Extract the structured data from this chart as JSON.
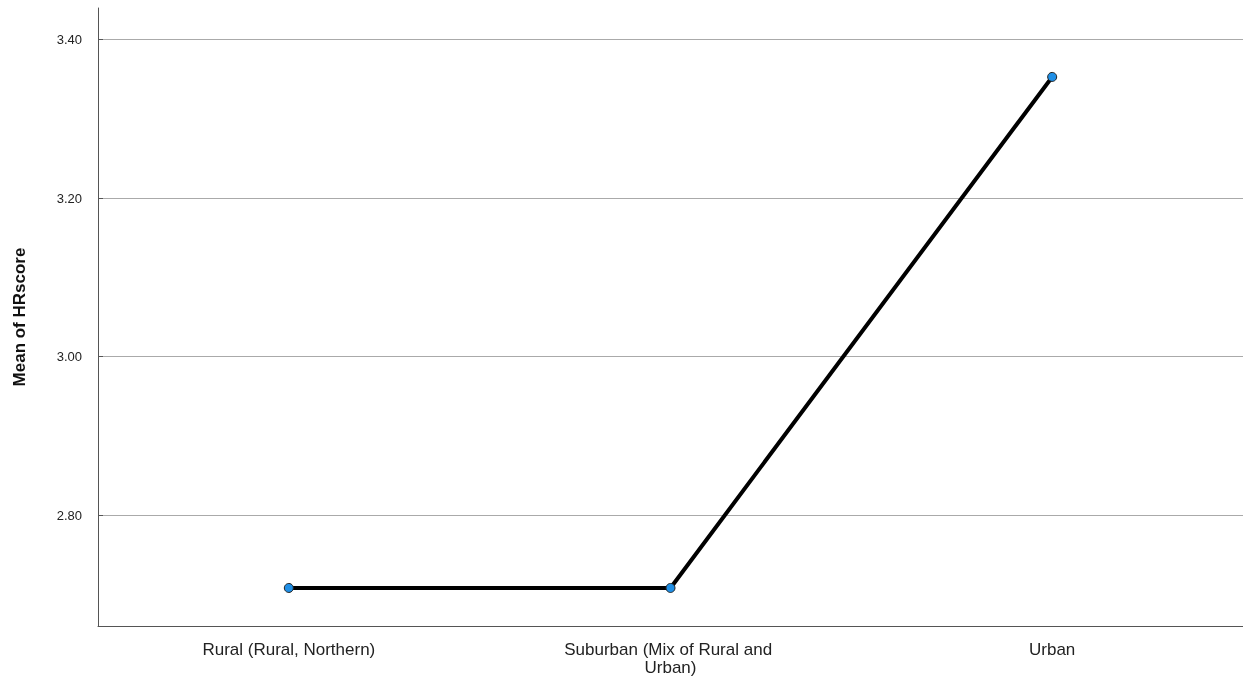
{
  "chart_data": {
    "type": "line",
    "ylabel": "Mean of HRscore",
    "categories": [
      "Rural (Rural, Northern)",
      "Suburban (Mix of Rural and Urban)",
      "Urban"
    ],
    "series": [
      {
        "color": "#000000",
        "values": [
          2.708,
          2.708,
          3.353
        ]
      }
    ],
    "ylim": [
      2.66,
      3.44
    ],
    "yticks": [
      {
        "value": 2.8,
        "label": "2.80"
      },
      {
        "value": 3.0,
        "label": "3.00"
      },
      {
        "value": 3.2,
        "label": "3.20"
      },
      {
        "value": 3.4,
        "label": "3.40"
      }
    ],
    "grid": "y",
    "marker": "circle",
    "line_style": "solid"
  }
}
